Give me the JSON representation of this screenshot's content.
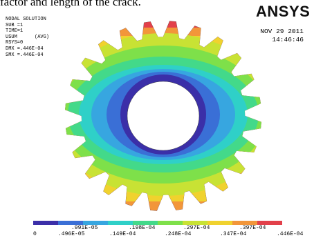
{
  "caption": "factor and length of the crack.",
  "info": {
    "title": "NODAL SOLUTION",
    "sub": "SUB =1",
    "time": "TIME=1",
    "usum": "USUM      (AVG)",
    "rsys": "RSYS=0",
    "dmx": "DMX =.446E-04",
    "smx": "SMX =.446E-04"
  },
  "logo": "ANSYS",
  "date": "NOV 29 2011",
  "time": "14:46:46",
  "legend": {
    "colors": [
      "#3b2fa8",
      "#3a6fd6",
      "#37a6e0",
      "#2fd0c8",
      "#43d98a",
      "#7ee04a",
      "#c8e234",
      "#f0d22e",
      "#f2963a",
      "#e2404a"
    ],
    "labels_top": [
      ".991E-05",
      ".198E-04",
      ".297E-04",
      ".397E-04"
    ],
    "labels_bottom": [
      "0",
      ".496E-05",
      ".149E-04",
      ".248E-04",
      ".347E-04",
      ".446E-04"
    ]
  }
}
